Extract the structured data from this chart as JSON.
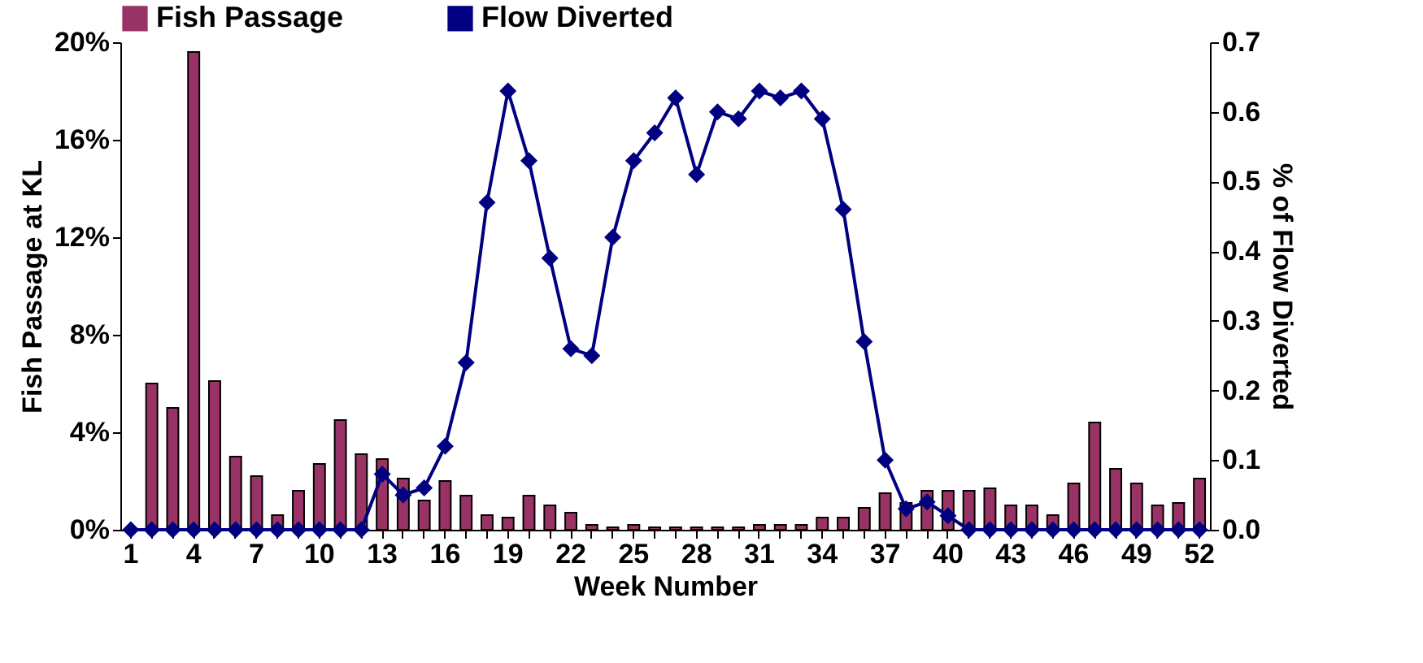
{
  "chart_data": {
    "type": "bar",
    "xlabel": "Week Number",
    "ylabel": "Fish Passage at KL",
    "y2label": "% of Flow Diverted",
    "categories": [
      "1",
      null,
      null,
      "4",
      null,
      null,
      "7",
      null,
      null,
      "10",
      null,
      null,
      "13",
      null,
      null,
      "16",
      null,
      null,
      "19",
      null,
      null,
      "22",
      null,
      null,
      "25",
      null,
      null,
      "28",
      null,
      null,
      "31",
      null,
      null,
      "34",
      null,
      null,
      "37",
      null,
      null,
      "40",
      null,
      null,
      "43",
      null,
      null,
      "46",
      null,
      null,
      "49",
      null,
      null,
      "52"
    ],
    "series": [
      {
        "name": "Fish Passage",
        "color": "#993366",
        "values": [
          null,
          6.0,
          5.0,
          19.6,
          6.1,
          3.0,
          2.2,
          0.6,
          1.6,
          2.7,
          4.5,
          3.1,
          2.9,
          2.1,
          1.2,
          2.0,
          1.4,
          0.6,
          0.5,
          1.4,
          1.0,
          0.7,
          0.2,
          0.1,
          0.2,
          0.1,
          0.1,
          0.1,
          0.1,
          0.1,
          0.2,
          0.2,
          0.2,
          0.5,
          0.5,
          0.9,
          1.5,
          1.1,
          1.6,
          1.6,
          1.6,
          1.7,
          1.0,
          1.0,
          0.6,
          1.9,
          4.4,
          2.5,
          1.9,
          1.0,
          1.1,
          2.1
        ]
      },
      {
        "name": "Flow Diverted",
        "type": "line",
        "axis": "y2",
        "color": "#000080",
        "marker": "diamond",
        "values": [
          0,
          0,
          0,
          0,
          0,
          0,
          0,
          0,
          0,
          0,
          0,
          0,
          0.08,
          0.05,
          0.06,
          0.12,
          0.24,
          0.47,
          0.63,
          0.53,
          0.39,
          0.26,
          0.25,
          0.42,
          0.53,
          0.57,
          0.62,
          0.51,
          0.6,
          0.59,
          0.63,
          0.62,
          0.63,
          0.59,
          0.46,
          0.27,
          0.1,
          0.03,
          0.04,
          0.02,
          0,
          0,
          0,
          0,
          0,
          0,
          0,
          0,
          0,
          0,
          0,
          0
        ]
      }
    ],
    "ylim": [
      0,
      20
    ],
    "yticks": [
      {
        "value": 0,
        "label": "0%"
      },
      {
        "value": 4,
        "label": "4%"
      },
      {
        "value": 8,
        "label": "8%"
      },
      {
        "value": 12,
        "label": "12%"
      },
      {
        "value": 16,
        "label": "16%"
      },
      {
        "value": 20,
        "label": "20%"
      }
    ],
    "y2lim": [
      0,
      0.7
    ],
    "y2ticks": [
      {
        "value": 0,
        "label": "0.0"
      },
      0.1,
      0.2,
      0.3,
      0.4,
      0.5,
      0.6,
      0.7
    ],
    "legend": "top",
    "grid": false
  }
}
